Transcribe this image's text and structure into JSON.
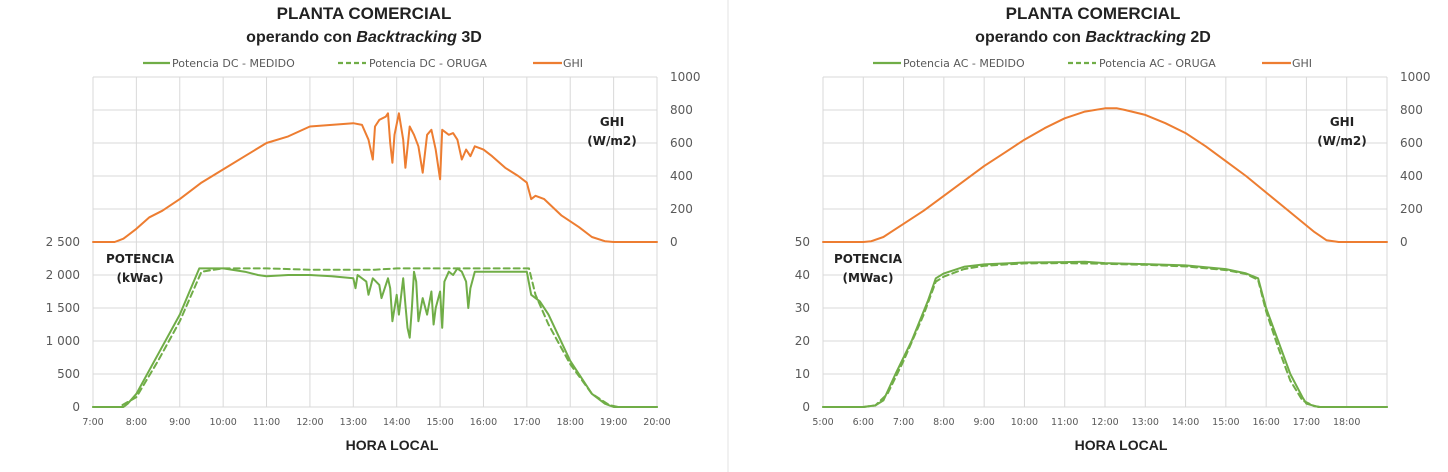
{
  "colors": {
    "green": "#70ad47",
    "orange": "#ed7d31",
    "grid": "#d9d9d9",
    "text": "#595959"
  },
  "chart_data": [
    {
      "type": "line",
      "title": "PLANTA COMERCIAL",
      "subtitle_prefix": "operando con ",
      "subtitle_italic": "Backtracking",
      "subtitle_suffix": " 3D",
      "xlabel": "HORA LOCAL",
      "x_range": [
        7,
        20
      ],
      "x_ticks": [
        "7:00",
        "8:00",
        "9:00",
        "10:00",
        "11:00",
        "12:00",
        "13:00",
        "14:00",
        "15:00",
        "16:00",
        "17:00",
        "18:00",
        "19:00",
        "20:00"
      ],
      "left_axis_label_1": "POTENCIA",
      "left_axis_label_2": "(kWac)",
      "left_ylim": [
        0,
        5000
      ],
      "left_ticks": [
        "0",
        "500",
        "1 000",
        "1 500",
        "2 000",
        "2 500"
      ],
      "right_axis_label_1": "GHI",
      "right_axis_label_2": "(W/m2)",
      "right_ylim": [
        -1000,
        1000
      ],
      "right_ticks": [
        "0",
        "200",
        "400",
        "600",
        "800",
        "1000"
      ],
      "legend": [
        "Potencia DC - MEDIDO",
        "Potencia DC - ORUGA",
        "GHI"
      ],
      "series": [
        {
          "name": "Potencia DC - MEDIDO",
          "axis": "left",
          "style": "solid",
          "color": "#70ad47",
          "points": [
            [
              7.0,
              0
            ],
            [
              7.7,
              0
            ],
            [
              7.8,
              50
            ],
            [
              8.0,
              200
            ],
            [
              8.5,
              800
            ],
            [
              9.0,
              1400
            ],
            [
              9.45,
              2100
            ],
            [
              10.0,
              2100
            ],
            [
              10.5,
              2050
            ],
            [
              10.8,
              2000
            ],
            [
              11.0,
              1980
            ],
            [
              11.5,
              2000
            ],
            [
              12.0,
              2000
            ],
            [
              12.5,
              1980
            ],
            [
              13.0,
              1950
            ],
            [
              13.05,
              1800
            ],
            [
              13.1,
              2000
            ],
            [
              13.3,
              1900
            ],
            [
              13.35,
              1700
            ],
            [
              13.45,
              1950
            ],
            [
              13.6,
              1850
            ],
            [
              13.65,
              1650
            ],
            [
              13.8,
              1950
            ],
            [
              13.85,
              1800
            ],
            [
              13.9,
              1300
            ],
            [
              14.0,
              1700
            ],
            [
              14.05,
              1400
            ],
            [
              14.15,
              1950
            ],
            [
              14.2,
              1550
            ],
            [
              14.25,
              1200
            ],
            [
              14.3,
              1050
            ],
            [
              14.35,
              1500
            ],
            [
              14.4,
              2050
            ],
            [
              14.45,
              1900
            ],
            [
              14.5,
              1300
            ],
            [
              14.6,
              1650
            ],
            [
              14.7,
              1400
            ],
            [
              14.8,
              1750
            ],
            [
              14.85,
              1250
            ],
            [
              14.9,
              1500
            ],
            [
              15.0,
              1750
            ],
            [
              15.05,
              1200
            ],
            [
              15.1,
              1900
            ],
            [
              15.2,
              2050
            ],
            [
              15.3,
              2000
            ],
            [
              15.4,
              2100
            ],
            [
              15.5,
              2050
            ],
            [
              15.6,
              1900
            ],
            [
              15.65,
              1500
            ],
            [
              15.7,
              1800
            ],
            [
              15.8,
              2050
            ],
            [
              16.0,
              2050
            ],
            [
              16.5,
              2050
            ],
            [
              17.0,
              2050
            ],
            [
              17.1,
              1700
            ],
            [
              17.2,
              1650
            ],
            [
              17.3,
              1600
            ],
            [
              17.5,
              1400
            ],
            [
              18.0,
              700
            ],
            [
              18.5,
              200
            ],
            [
              18.8,
              50
            ],
            [
              19.0,
              0
            ],
            [
              20.0,
              0
            ]
          ]
        },
        {
          "name": "Potencia DC - ORUGA",
          "axis": "left",
          "style": "dashed",
          "color": "#70ad47",
          "points": [
            [
              7.0,
              0
            ],
            [
              7.6,
              0
            ],
            [
              8.0,
              150
            ],
            [
              8.5,
              700
            ],
            [
              9.0,
              1300
            ],
            [
              9.5,
              2050
            ],
            [
              10.0,
              2100
            ],
            [
              11.0,
              2100
            ],
            [
              12.0,
              2080
            ],
            [
              13.0,
              2080
            ],
            [
              13.5,
              2080
            ],
            [
              14.0,
              2100
            ],
            [
              15.0,
              2100
            ],
            [
              16.0,
              2100
            ],
            [
              17.05,
              2100
            ],
            [
              17.2,
              1700
            ],
            [
              17.5,
              1250
            ],
            [
              18.0,
              650
            ],
            [
              18.5,
              200
            ],
            [
              18.9,
              30
            ],
            [
              19.1,
              0
            ],
            [
              20.0,
              0
            ]
          ]
        },
        {
          "name": "GHI",
          "axis": "right",
          "style": "solid",
          "color": "#ed7d31",
          "points": [
            [
              7.0,
              0
            ],
            [
              7.5,
              0
            ],
            [
              7.7,
              20
            ],
            [
              8.0,
              80
            ],
            [
              8.3,
              150
            ],
            [
              8.6,
              190
            ],
            [
              9.0,
              260
            ],
            [
              9.5,
              360
            ],
            [
              10.0,
              440
            ],
            [
              10.5,
              520
            ],
            [
              11.0,
              600
            ],
            [
              11.5,
              640
            ],
            [
              12.0,
              700
            ],
            [
              12.5,
              710
            ],
            [
              13.0,
              720
            ],
            [
              13.2,
              710
            ],
            [
              13.35,
              620
            ],
            [
              13.45,
              500
            ],
            [
              13.5,
              700
            ],
            [
              13.6,
              740
            ],
            [
              13.75,
              760
            ],
            [
              13.8,
              780
            ],
            [
              13.85,
              600
            ],
            [
              13.9,
              480
            ],
            [
              13.95,
              650
            ],
            [
              14.05,
              780
            ],
            [
              14.15,
              620
            ],
            [
              14.2,
              450
            ],
            [
              14.3,
              700
            ],
            [
              14.4,
              650
            ],
            [
              14.5,
              580
            ],
            [
              14.6,
              420
            ],
            [
              14.7,
              650
            ],
            [
              14.8,
              680
            ],
            [
              14.9,
              560
            ],
            [
              15.0,
              380
            ],
            [
              15.05,
              680
            ],
            [
              15.2,
              650
            ],
            [
              15.3,
              660
            ],
            [
              15.4,
              620
            ],
            [
              15.5,
              500
            ],
            [
              15.6,
              560
            ],
            [
              15.7,
              520
            ],
            [
              15.8,
              580
            ],
            [
              16.0,
              560
            ],
            [
              16.2,
              520
            ],
            [
              16.5,
              450
            ],
            [
              16.8,
              400
            ],
            [
              17.0,
              360
            ],
            [
              17.1,
              260
            ],
            [
              17.2,
              280
            ],
            [
              17.4,
              260
            ],
            [
              17.8,
              160
            ],
            [
              18.2,
              90
            ],
            [
              18.5,
              30
            ],
            [
              18.8,
              5
            ],
            [
              19.0,
              0
            ],
            [
              20.0,
              0
            ]
          ]
        }
      ]
    },
    {
      "type": "line",
      "title": "PLANTA COMERCIAL",
      "subtitle_prefix": "operando con ",
      "subtitle_italic": "Backtracking",
      "subtitle_suffix": " 2D",
      "xlabel": "HORA LOCAL",
      "x_range": [
        5,
        19
      ],
      "x_ticks": [
        "5:00",
        "6:00",
        "7:00",
        "8:00",
        "9:00",
        "10:00",
        "11:00",
        "12:00",
        "13:00",
        "14:00",
        "15:00",
        "16:00",
        "17:00",
        "18:00"
      ],
      "left_axis_label_1": "POTENCIA",
      "left_axis_label_2": "(MWac)",
      "left_ylim": [
        0,
        100
      ],
      "left_ticks": [
        "0",
        "10",
        "20",
        "30",
        "40",
        "50"
      ],
      "right_axis_label_1": "GHI",
      "right_axis_label_2": "(W/m2)",
      "right_ylim": [
        -1000,
        1000
      ],
      "right_ticks": [
        "0",
        "200",
        "400",
        "600",
        "800",
        "1000"
      ],
      "legend": [
        "Potencia AC - MEDIDO",
        "Potencia AC - ORUGA",
        "GHI"
      ],
      "series": [
        {
          "name": "Potencia AC - MEDIDO",
          "axis": "left",
          "style": "solid",
          "color": "#70ad47",
          "points": [
            [
              5.0,
              0
            ],
            [
              6.0,
              0
            ],
            [
              6.3,
              0.5
            ],
            [
              6.5,
              2
            ],
            [
              6.8,
              10
            ],
            [
              7.2,
              20
            ],
            [
              7.6,
              32
            ],
            [
              7.8,
              39
            ],
            [
              8.0,
              40.5
            ],
            [
              8.5,
              42.5
            ],
            [
              9.0,
              43.2
            ],
            [
              10.0,
              43.8
            ],
            [
              11.0,
              43.9
            ],
            [
              11.5,
              44
            ],
            [
              12.0,
              43.6
            ],
            [
              13.0,
              43.3
            ],
            [
              14.0,
              42.9
            ],
            [
              15.0,
              41.8
            ],
            [
              15.5,
              40.5
            ],
            [
              15.8,
              39
            ],
            [
              16.0,
              30
            ],
            [
              16.3,
              20
            ],
            [
              16.6,
              10
            ],
            [
              16.9,
              3
            ],
            [
              17.0,
              1
            ],
            [
              17.3,
              0
            ],
            [
              19.0,
              0
            ]
          ]
        },
        {
          "name": "Potencia AC - ORUGA",
          "axis": "left",
          "style": "dashed",
          "color": "#70ad47",
          "points": [
            [
              5.0,
              0
            ],
            [
              6.0,
              0
            ],
            [
              6.3,
              0.5
            ],
            [
              6.6,
              4
            ],
            [
              7.0,
              14
            ],
            [
              7.5,
              28
            ],
            [
              7.8,
              38
            ],
            [
              8.0,
              39.5
            ],
            [
              8.5,
              41.8
            ],
            [
              9.0,
              42.8
            ],
            [
              10.0,
              43.5
            ],
            [
              11.0,
              43.6
            ],
            [
              12.0,
              43.4
            ],
            [
              13.0,
              43.1
            ],
            [
              14.0,
              42.6
            ],
            [
              15.0,
              41.5
            ],
            [
              15.5,
              40.3
            ],
            [
              15.8,
              38.5
            ],
            [
              16.0,
              29
            ],
            [
              16.3,
              18
            ],
            [
              16.6,
              8
            ],
            [
              16.9,
              2
            ],
            [
              17.2,
              0.2
            ],
            [
              17.4,
              0
            ],
            [
              19.0,
              0
            ]
          ]
        },
        {
          "name": "GHI",
          "axis": "right",
          "style": "solid",
          "color": "#ed7d31",
          "points": [
            [
              5.0,
              0
            ],
            [
              6.0,
              0
            ],
            [
              6.2,
              5
            ],
            [
              6.5,
              30
            ],
            [
              7.0,
              110
            ],
            [
              7.5,
              190
            ],
            [
              8.0,
              280
            ],
            [
              8.5,
              370
            ],
            [
              9.0,
              460
            ],
            [
              9.5,
              540
            ],
            [
              10.0,
              620
            ],
            [
              10.5,
              690
            ],
            [
              11.0,
              750
            ],
            [
              11.5,
              790
            ],
            [
              12.0,
              810
            ],
            [
              12.3,
              810
            ],
            [
              12.5,
              800
            ],
            [
              13.0,
              770
            ],
            [
              13.5,
              720
            ],
            [
              14.0,
              660
            ],
            [
              14.5,
              580
            ],
            [
              15.0,
              490
            ],
            [
              15.5,
              400
            ],
            [
              16.0,
              300
            ],
            [
              16.5,
              200
            ],
            [
              17.0,
              100
            ],
            [
              17.2,
              60
            ],
            [
              17.5,
              10
            ],
            [
              17.8,
              0
            ],
            [
              19.0,
              0
            ]
          ]
        }
      ]
    }
  ]
}
